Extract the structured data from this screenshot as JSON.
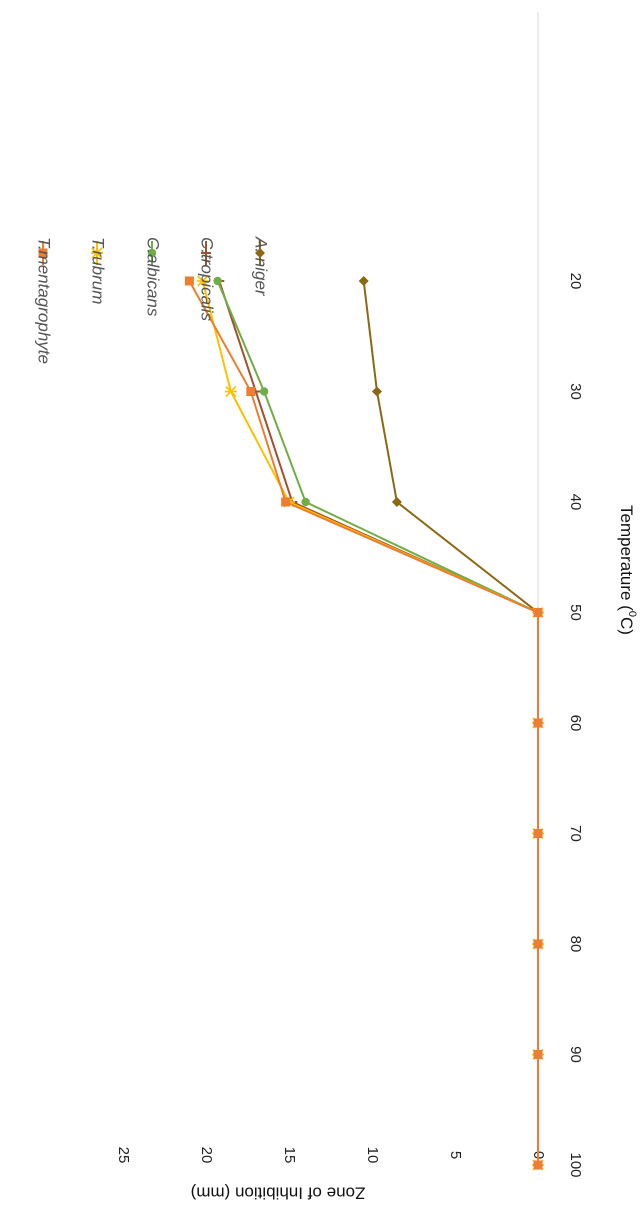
{
  "chart_data": {
    "type": "line",
    "xlabel": "Temperature (",
    "xlabel_sup": "0",
    "xlabel_suffix": "C)",
    "ylabel": "Zone of Inhibition  (mm)",
    "x": [
      20,
      30,
      40,
      50,
      60,
      70,
      80,
      90,
      100
    ],
    "x_ticks": [
      "20",
      "30",
      "40",
      "50",
      "60",
      "70",
      "80",
      "90",
      "100"
    ],
    "y_ticks": [
      "0",
      "5",
      "10",
      "15",
      "20",
      "25"
    ],
    "xlim": [
      10,
      100
    ],
    "ylim": [
      0,
      25
    ],
    "grid": false,
    "legend_position": "top-right",
    "orientation": "rotated 90 degrees clockwise",
    "series": [
      {
        "name": "T.mentagrophyte",
        "color": "#ED7D31",
        "marker": "square",
        "values": [
          21,
          17.3,
          15.2,
          0,
          0,
          0,
          0,
          0,
          0
        ]
      },
      {
        "name": "T.rubrum",
        "color": "#FFC000",
        "marker": "x",
        "values": [
          20.2,
          18.5,
          15,
          0,
          0,
          0,
          0,
          0,
          0
        ]
      },
      {
        "name": "C.albicans",
        "color": "#70AD47",
        "marker": "circle",
        "values": [
          19.3,
          16.5,
          14,
          0,
          0,
          0,
          0,
          0,
          0
        ]
      },
      {
        "name": "C.tropicalis",
        "color": "#A0522D",
        "marker": "dash",
        "values": [
          19.2,
          17,
          14.8,
          0,
          0,
          0,
          0,
          0,
          0
        ]
      },
      {
        "name": "A. niger",
        "color": "#8B6914",
        "marker": "diamond",
        "values": [
          10.5,
          9.7,
          8.5,
          0,
          0,
          0,
          0,
          0,
          0
        ]
      }
    ]
  }
}
